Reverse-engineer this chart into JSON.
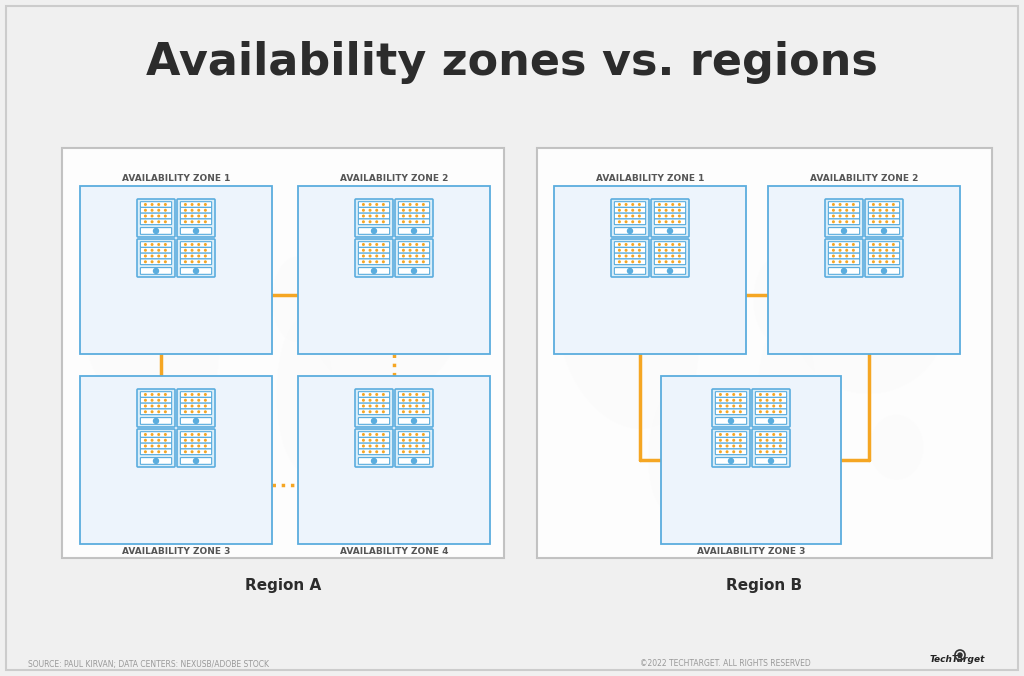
{
  "title": "Availability zones vs. regions",
  "title_fontsize": 32,
  "title_fontweight": "bold",
  "title_color": "#2c2c2c",
  "bg_color": "#f0f0f0",
  "region_border_color": "#bbbbbb",
  "zone_border_color": "#5badde",
  "zone_bg_color": "#edf4fc",
  "server_color": "#5badde",
  "server_accent": "#f5a623",
  "connector_color": "#f5a623",
  "label_color": "#555555",
  "label_fontsize": 6.5,
  "region_label_fontsize": 11,
  "region_A_label": "Region A",
  "region_B_label": "Region B",
  "footer_left": "SOURCE: PAUL KIRVAN; DATA CENTERS: NEXUSB/ADOBE STOCK",
  "footer_right": "©2022 TECHTARGET. ALL RIGHTS RESERVED",
  "footer_fontsize": 5.5
}
